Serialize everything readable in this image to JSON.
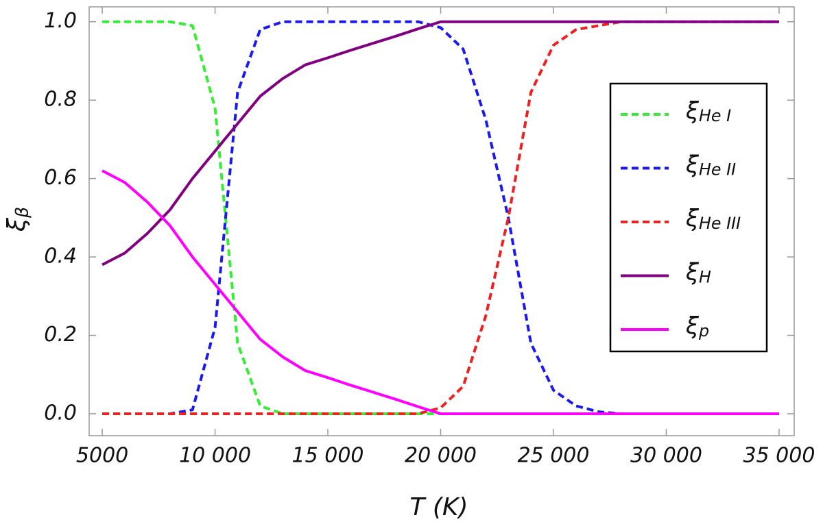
{
  "chart_data": {
    "type": "line",
    "x_label": "T (K)",
    "y_label": "ξβ",
    "x": [
      5000,
      6000,
      7000,
      8000,
      9000,
      10000,
      11000,
      12000,
      13000,
      14000,
      15000,
      16000,
      17000,
      18000,
      19000,
      20000,
      21000,
      22000,
      23000,
      24000,
      25000,
      26000,
      27000,
      28000,
      29000,
      30000,
      31000,
      32000,
      33000,
      34000,
      35000
    ],
    "series": [
      {
        "name": "ξHe I",
        "color": "#33ee33",
        "dashed": true,
        "values": [
          1,
          1,
          1,
          1,
          0.99,
          0.78,
          0.18,
          0.02,
          0,
          0,
          0,
          0,
          0,
          0,
          0,
          0,
          0,
          0,
          0,
          0,
          0,
          0,
          0,
          0,
          0,
          0,
          0,
          0,
          0,
          0,
          0
        ]
      },
      {
        "name": "ξHe II",
        "color": "#1a1aee",
        "dashed": true,
        "values": [
          0,
          0,
          0,
          0,
          0.01,
          0.22,
          0.82,
          0.98,
          1,
          1,
          1,
          1,
          1,
          1,
          1,
          0.985,
          0.93,
          0.75,
          0.5,
          0.18,
          0.06,
          0.02,
          0.005,
          0,
          0,
          0,
          0,
          0,
          0,
          0,
          0
        ]
      },
      {
        "name": "ξHe III",
        "color": "#ee2020",
        "dashed": true,
        "values": [
          0,
          0,
          0,
          0,
          0,
          0,
          0,
          0,
          0,
          0,
          0,
          0,
          0,
          0,
          0,
          0.015,
          0.07,
          0.25,
          0.5,
          0.82,
          0.94,
          0.98,
          0.99,
          1,
          1,
          1,
          1,
          1,
          1,
          1,
          1
        ]
      },
      {
        "name": "ξH",
        "color": "#800080",
        "dashed": false,
        "values": [
          0.38,
          0.41,
          0.46,
          0.52,
          0.6,
          0.67,
          0.74,
          0.81,
          0.855,
          0.89,
          0.908,
          0.927,
          0.945,
          0.963,
          0.982,
          1,
          1,
          1,
          1,
          1,
          1,
          1,
          1,
          1,
          1,
          1,
          1,
          1,
          1,
          1,
          1
        ]
      },
      {
        "name": "ξp",
        "color": "#ff00ff",
        "dashed": false,
        "values": [
          0.62,
          0.59,
          0.54,
          0.48,
          0.4,
          0.33,
          0.26,
          0.19,
          0.145,
          0.11,
          0.092,
          0.073,
          0.055,
          0.037,
          0.018,
          0,
          0,
          0,
          0,
          0,
          0,
          0,
          0,
          0,
          0,
          0,
          0,
          0,
          0,
          0,
          0
        ]
      }
    ],
    "xlim": [
      4420,
      35670
    ],
    "ylim": [
      -0.056,
      1.038
    ],
    "xticks": [
      5000,
      {
        "value": 10000,
        "label": "10 000"
      },
      {
        "value": 15000,
        "label": "15 000"
      },
      {
        "value": 20000,
        "label": "20 000"
      },
      {
        "value": 25000,
        "label": "25 000"
      },
      {
        "value": 30000,
        "label": "30 000"
      },
      {
        "value": 35000,
        "label": "35 000"
      }
    ],
    "yticks": [
      {
        "value": 0,
        "label": "0.0"
      },
      0.2,
      0.4,
      0.6,
      0.8,
      {
        "value": 1,
        "label": "1.0"
      }
    ],
    "legend_position": "right",
    "grid": false
  }
}
